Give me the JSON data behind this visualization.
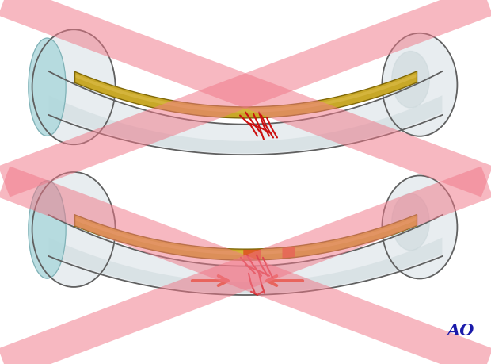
{
  "bg_color": "#ffffff",
  "bone_fill": "#e8edf0",
  "bone_fill2": "#dce5e8",
  "bone_outline": "#606060",
  "bone_inner_shadow": "#c8d5d8",
  "cartilage_fill": "#aed8dc",
  "cartilage_outline": "#80b0b5",
  "plate_fill": "#c8a828",
  "plate_fill2": "#b89020",
  "plate_outline": "#806808",
  "plate_highlight": "#e0c050",
  "fracture_color": "#cc1111",
  "cross_color": "#f07888",
  "cross_alpha": 0.52,
  "cross_lw": 30,
  "arrow_color": "#e05030",
  "ao_color": "#1a1aaa",
  "red_highlight": "#cc3300",
  "red_highlight2": "#dd5522"
}
